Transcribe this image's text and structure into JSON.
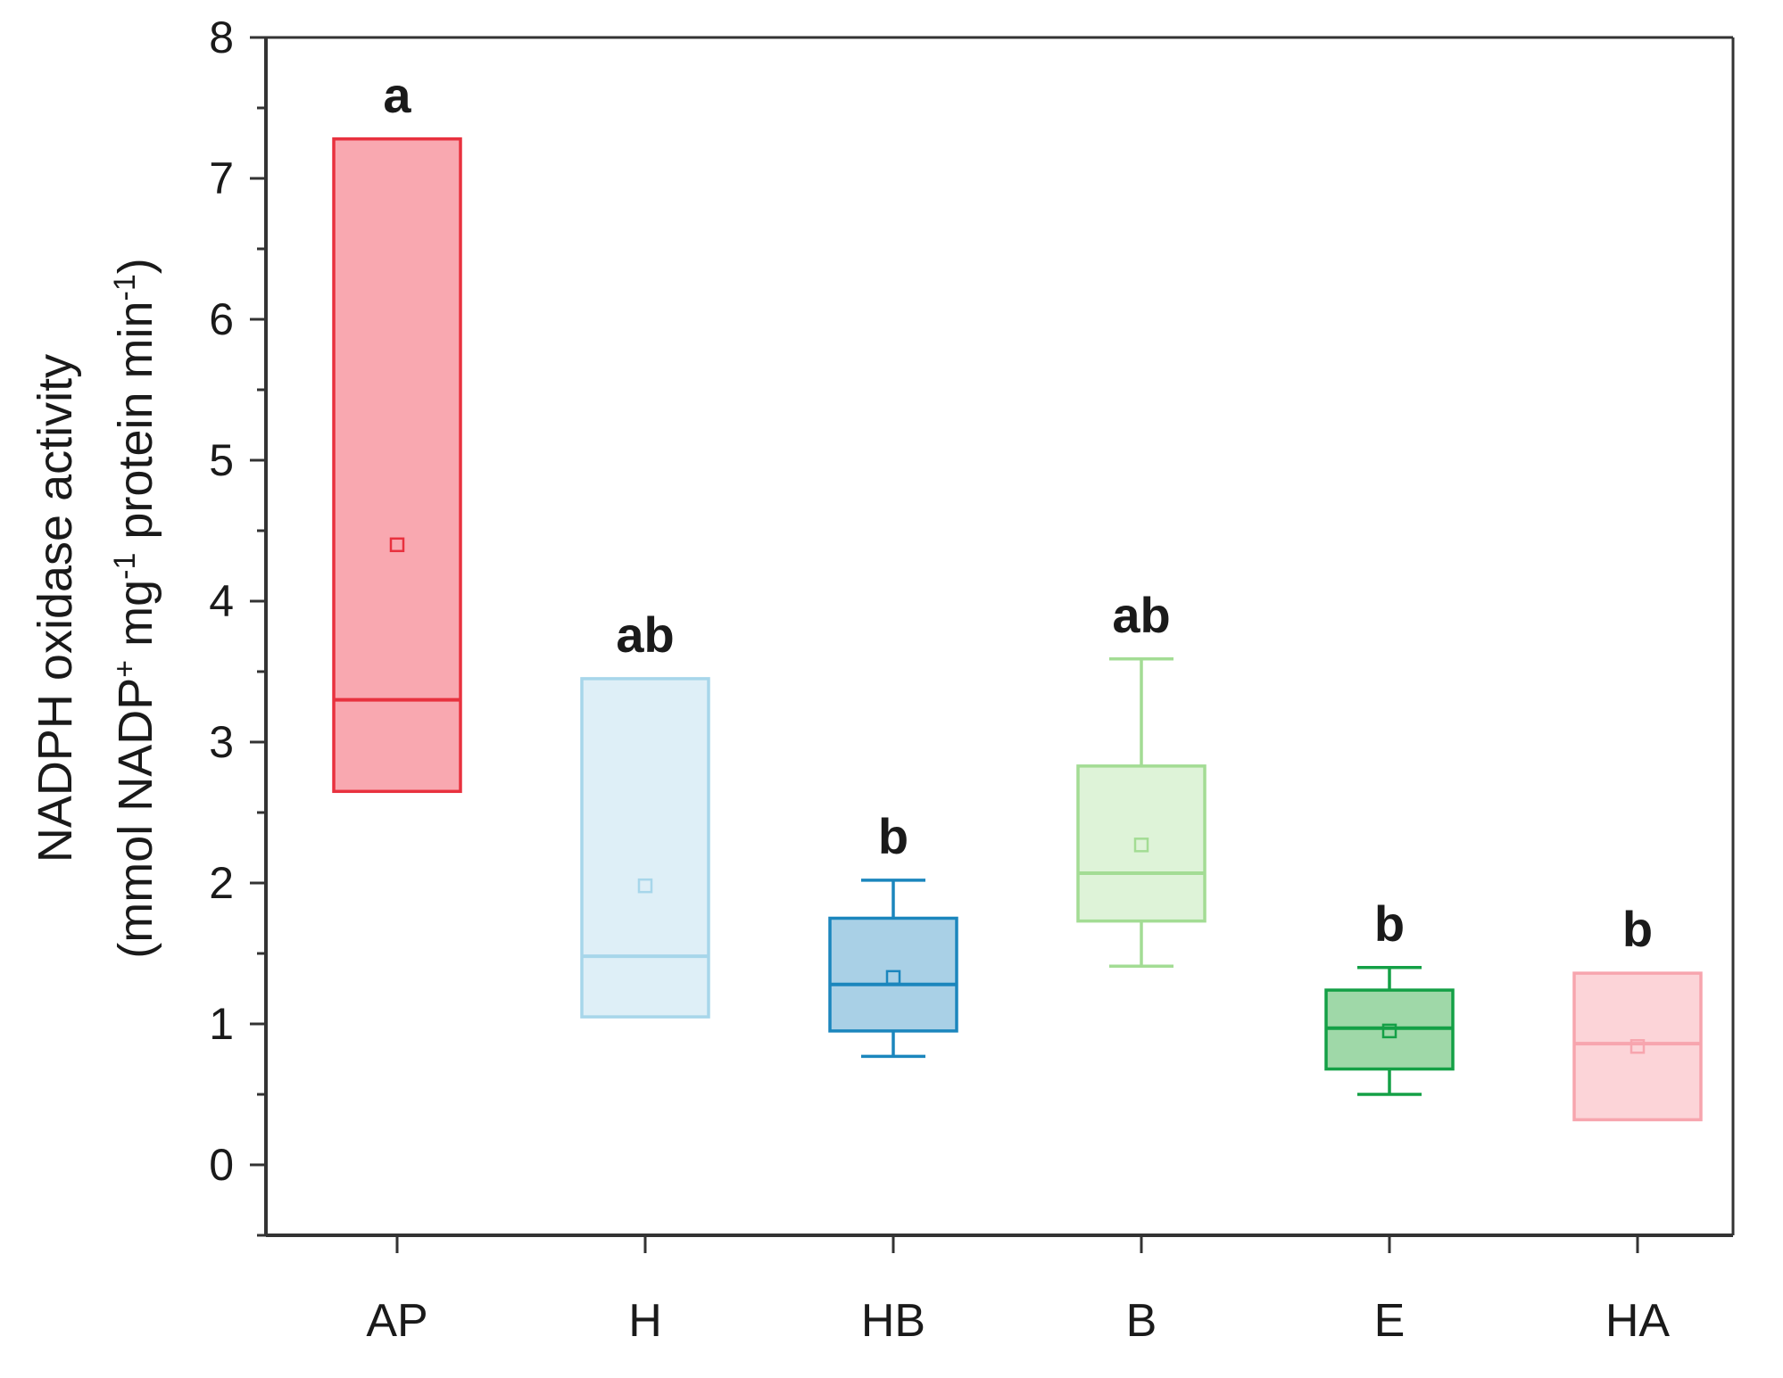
{
  "chart_data": {
    "type": "box",
    "title": "",
    "xlabel": "",
    "ylabel": {
      "line1": "NADPH oxidase activity",
      "line2_parts": [
        "(mmol NADP",
        "+",
        " mg",
        "-1",
        " protein min",
        "-1",
        ")"
      ]
    },
    "ylim": [
      -0.5,
      8
    ],
    "yticks": [
      "0",
      "1",
      "2",
      "3",
      "4",
      "5",
      "6",
      "7",
      "8"
    ],
    "categories": [
      "AP",
      "H",
      "HB",
      "B",
      "E",
      "HA"
    ],
    "boxes": [
      {
        "name": "AP",
        "q1": 2.65,
        "median": 3.3,
        "q3": 7.28,
        "mean": 4.4,
        "whisker_low": null,
        "whisker_high": null,
        "significance": "a",
        "stroke": "#e8313e",
        "fill": "#f9a8b0"
      },
      {
        "name": "H",
        "q1": 1.05,
        "median": 1.48,
        "q3": 3.45,
        "mean": 1.98,
        "whisker_low": null,
        "whisker_high": null,
        "significance": "ab",
        "stroke": "#a7d6ea",
        "fill": "#deeff7"
      },
      {
        "name": "HB",
        "q1": 0.95,
        "median": 1.28,
        "q3": 1.75,
        "mean": 1.33,
        "whisker_low": 0.77,
        "whisker_high": 2.02,
        "significance": "b",
        "stroke": "#1b86bd",
        "fill": "#a9d0e6"
      },
      {
        "name": "B",
        "q1": 1.73,
        "median": 2.07,
        "q3": 2.83,
        "mean": 2.27,
        "whisker_low": 1.41,
        "whisker_high": 3.59,
        "significance": "ab",
        "stroke": "#a3dc94",
        "fill": "#def3d8"
      },
      {
        "name": "E",
        "q1": 0.68,
        "median": 0.97,
        "q3": 1.24,
        "mean": 0.95,
        "whisker_low": 0.5,
        "whisker_high": 1.4,
        "significance": "b",
        "stroke": "#14a046",
        "fill": "#9fd8a8"
      },
      {
        "name": "HA",
        "q1": 0.32,
        "median": 0.86,
        "q3": 1.36,
        "mean": 0.84,
        "whisker_low": null,
        "whisker_high": null,
        "significance": "b",
        "stroke": "#f7a5ae",
        "fill": "#fcd4d8"
      }
    ],
    "grid": false,
    "legend": "none"
  }
}
